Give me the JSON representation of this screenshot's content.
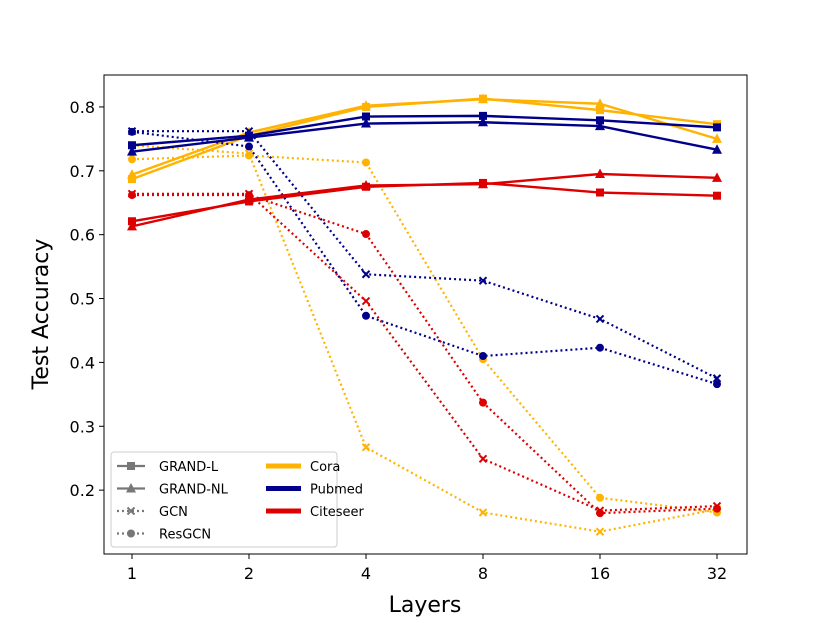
{
  "chart_data": {
    "type": "line",
    "title": "",
    "xlabel": "Layers",
    "ylabel": "Test Accuracy",
    "x_scale": "log2",
    "categories": [
      "1",
      "2",
      "4",
      "8",
      "16",
      "32"
    ],
    "x": [
      1,
      2,
      4,
      8,
      16,
      32
    ],
    "ylim": [
      0.1,
      0.85
    ],
    "yticks": [
      0.2,
      0.3,
      0.4,
      0.5,
      0.6,
      0.7,
      0.8
    ],
    "ytick_labels": [
      "0.2",
      "0.3",
      "0.4",
      "0.5",
      "0.6",
      "0.7",
      "0.8"
    ],
    "grid": false,
    "legend_position": "lower-left",
    "colors": {
      "Cora": "#FFB300",
      "Pubmed": "#00008B",
      "Citeseer": "#DD0000",
      "legend_gray": "#777777"
    },
    "legend_models": [
      {
        "label": "GRAND-L",
        "linestyle": "solid",
        "marker": "square"
      },
      {
        "label": "GRAND-NL",
        "linestyle": "solid",
        "marker": "triangle"
      },
      {
        "label": "GCN",
        "linestyle": "dotted",
        "marker": "x"
      },
      {
        "label": "ResGCN",
        "linestyle": "dotted",
        "marker": "circle"
      }
    ],
    "legend_datasets": [
      {
        "label": "Cora",
        "color": "#FFB300"
      },
      {
        "label": "Pubmed",
        "color": "#00008B"
      },
      {
        "label": "Citeseer",
        "color": "#DD0000"
      }
    ],
    "series": [
      {
        "name": "GRAND-L Cora",
        "dataset": "Cora",
        "model": "GRAND-L",
        "linestyle": "solid",
        "marker": "square",
        "values": [
          0.687,
          0.755,
          0.8,
          0.813,
          0.795,
          0.773
        ]
      },
      {
        "name": "GRAND-NL Cora",
        "dataset": "Cora",
        "model": "GRAND-NL",
        "linestyle": "solid",
        "marker": "triangle",
        "values": [
          0.694,
          0.76,
          0.802,
          0.812,
          0.805,
          0.75
        ]
      },
      {
        "name": "GCN Cora",
        "dataset": "Cora",
        "model": "GCN",
        "linestyle": "dotted",
        "marker": "x",
        "values": [
          0.74,
          0.727,
          0.267,
          0.165,
          0.135,
          0.17
        ]
      },
      {
        "name": "ResGCN Cora",
        "dataset": "Cora",
        "model": "ResGCN",
        "linestyle": "dotted",
        "marker": "circle",
        "values": [
          0.718,
          0.724,
          0.713,
          0.405,
          0.188,
          0.165
        ]
      },
      {
        "name": "GRAND-L Pubmed",
        "dataset": "Pubmed",
        "model": "GRAND-L",
        "linestyle": "solid",
        "marker": "square",
        "values": [
          0.74,
          0.755,
          0.785,
          0.786,
          0.779,
          0.768
        ]
      },
      {
        "name": "GRAND-NL Pubmed",
        "dataset": "Pubmed",
        "model": "GRAND-NL",
        "linestyle": "solid",
        "marker": "triangle",
        "values": [
          0.73,
          0.752,
          0.774,
          0.776,
          0.77,
          0.733
        ]
      },
      {
        "name": "GCN Pubmed",
        "dataset": "Pubmed",
        "model": "GCN",
        "linestyle": "dotted",
        "marker": "x",
        "values": [
          0.762,
          0.762,
          0.538,
          0.528,
          0.468,
          0.375
        ]
      },
      {
        "name": "ResGCN Pubmed",
        "dataset": "Pubmed",
        "model": "ResGCN",
        "linestyle": "dotted",
        "marker": "circle",
        "values": [
          0.761,
          0.738,
          0.473,
          0.41,
          0.423,
          0.366
        ]
      },
      {
        "name": "GRAND-L Citeseer",
        "dataset": "Citeseer",
        "model": "GRAND-L",
        "linestyle": "solid",
        "marker": "square",
        "values": [
          0.621,
          0.652,
          0.675,
          0.681,
          0.666,
          0.661
        ]
      },
      {
        "name": "GRAND-NL Citeseer",
        "dataset": "Citeseer",
        "model": "GRAND-NL",
        "linestyle": "solid",
        "marker": "triangle",
        "values": [
          0.613,
          0.655,
          0.677,
          0.679,
          0.695,
          0.689
        ]
      },
      {
        "name": "GCN Citeseer",
        "dataset": "Citeseer",
        "model": "GCN",
        "linestyle": "dotted",
        "marker": "x",
        "values": [
          0.664,
          0.664,
          0.496,
          0.249,
          0.168,
          0.175
        ]
      },
      {
        "name": "ResGCN Citeseer",
        "dataset": "Citeseer",
        "model": "ResGCN",
        "linestyle": "dotted",
        "marker": "circle",
        "values": [
          0.662,
          0.662,
          0.601,
          0.337,
          0.164,
          0.171
        ]
      }
    ]
  }
}
